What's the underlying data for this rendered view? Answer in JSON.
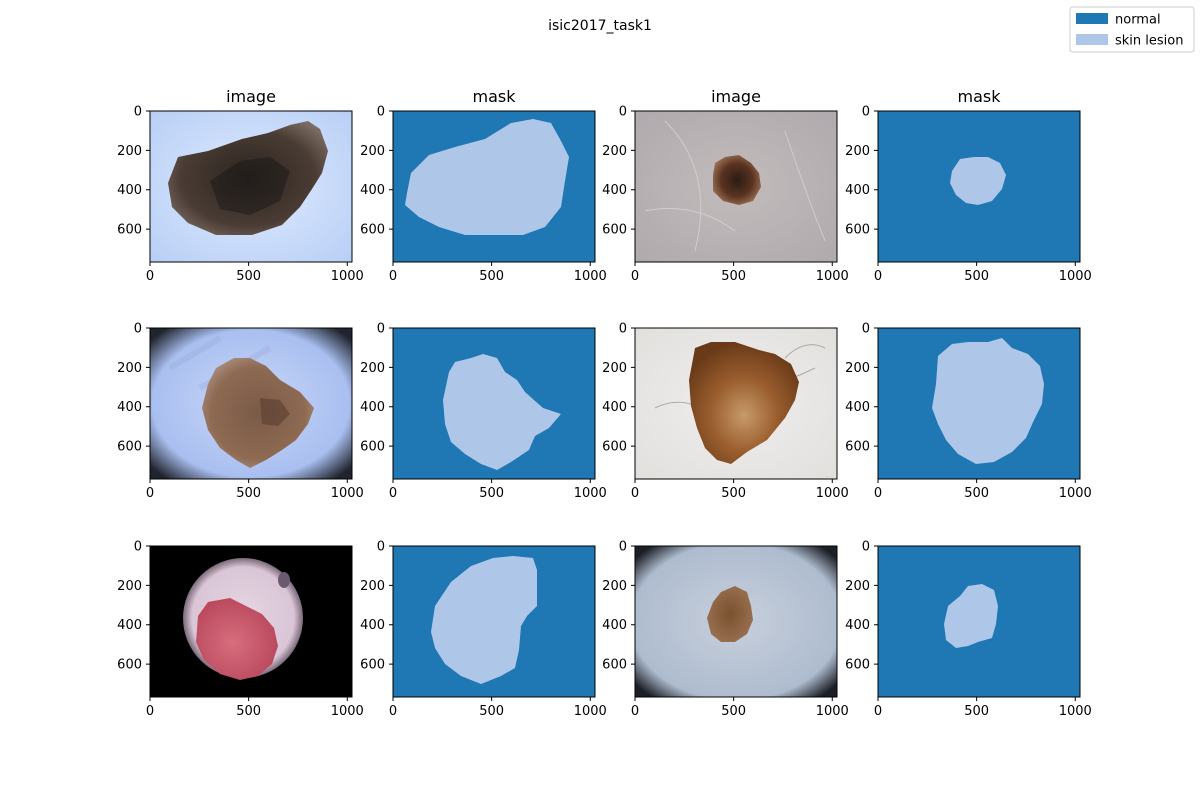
{
  "chart_data": {
    "type": "image-grid",
    "title": "isic2017_task1",
    "legend": {
      "placement": "top-right",
      "entries": [
        {
          "label": "normal",
          "color": "#1f77b4"
        },
        {
          "label": "skin lesion",
          "color": "#aec7e8"
        }
      ]
    },
    "column_titles": [
      "image",
      "mask",
      "image",
      "mask"
    ],
    "axes": {
      "x_ticks": [
        0,
        500,
        1000
      ],
      "y_ticks": [
        0,
        200,
        400,
        600
      ],
      "xlim": [
        0,
        1024
      ],
      "ylim": [
        767,
        0
      ]
    },
    "panels": [
      {
        "kind": "image",
        "name": "large dark brown lesion"
      },
      {
        "kind": "mask",
        "name": "mask of large lesion"
      },
      {
        "kind": "image",
        "name": "small dark lesion on hairy skin"
      },
      {
        "kind": "mask",
        "name": "mask of small lesion"
      },
      {
        "kind": "image",
        "name": "brown lesion on blue-tinted skin"
      },
      {
        "kind": "mask",
        "name": "mask of irregular lesion"
      },
      {
        "kind": "image",
        "name": "brown lesion with hairs"
      },
      {
        "kind": "mask",
        "name": "mask of rounded lesion"
      },
      {
        "kind": "image",
        "name": "red lesion in dark circular vignette"
      },
      {
        "kind": "mask",
        "name": "mask of large oval lesion"
      },
      {
        "kind": "image",
        "name": "small lesion in vignette"
      },
      {
        "kind": "mask",
        "name": "mask of small irregular lesion"
      }
    ]
  }
}
